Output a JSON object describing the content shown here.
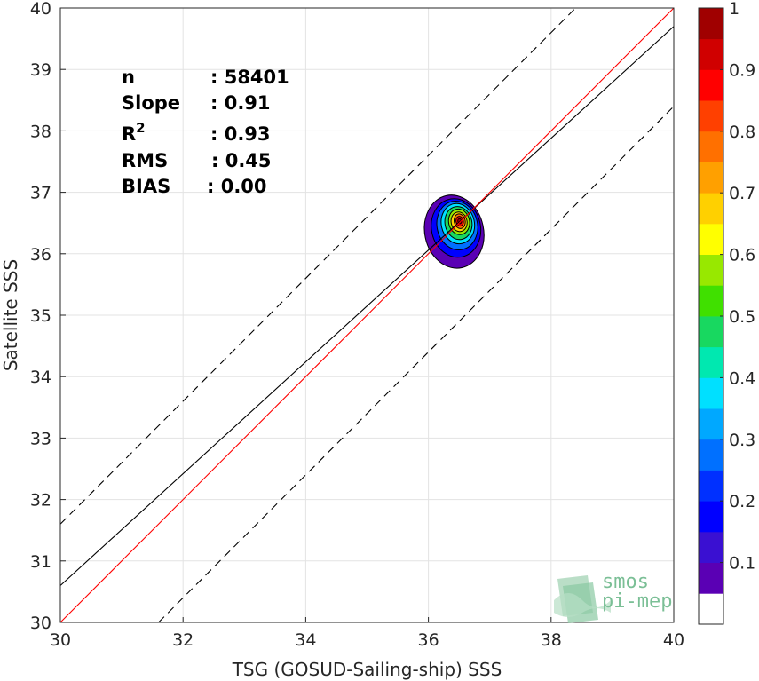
{
  "chart_data": {
    "type": "heatmap",
    "xlabel": "TSG (GOSUD-Sailing-ship) SSS",
    "ylabel": "Satellite SSS",
    "xlim": [
      30,
      40
    ],
    "ylim": [
      30,
      40
    ],
    "xticks": [
      "30",
      "32",
      "34",
      "36",
      "38",
      "40"
    ],
    "yticks": [
      "30",
      "31",
      "32",
      "33",
      "34",
      "35",
      "36",
      "37",
      "38",
      "39",
      "40"
    ],
    "grid": true,
    "stats": [
      {
        "label": "n",
        "value": ": 58401"
      },
      {
        "label": "Slope",
        "value": ": 0.91"
      },
      {
        "label": "R",
        "sup": "2",
        "value": ": 0.93"
      },
      {
        "label": "RMS",
        "value": ": 0.45"
      },
      {
        "label": "BIAS",
        "value": ": 0.00"
      }
    ],
    "lines": {
      "identity": {
        "color": "#ff0000",
        "slope": 1.0,
        "intercept": 0.0
      },
      "fit": {
        "color": "#000000",
        "slope": 0.91,
        "intercept": 3.3
      },
      "upper_dashed": {
        "slope": 1.0,
        "intercept": 1.6
      },
      "lower_dashed": {
        "slope": 1.0,
        "intercept": -1.6
      }
    },
    "density": {
      "center": [
        36.5,
        36.52
      ],
      "levels": [
        {
          "level": 0.05,
          "rx": 0.48,
          "ry": 0.6,
          "dx": -0.08,
          "dy": -0.16
        },
        {
          "level": 0.15,
          "rx": 0.4,
          "ry": 0.48,
          "dx": -0.05,
          "dy": -0.1
        },
        {
          "level": 0.25,
          "rx": 0.33,
          "ry": 0.4,
          "dx": -0.03,
          "dy": -0.06
        },
        {
          "level": 0.35,
          "rx": 0.27,
          "ry": 0.33,
          "dx": -0.02,
          "dy": -0.03
        },
        {
          "level": 0.45,
          "rx": 0.22,
          "ry": 0.27,
          "dx": -0.01,
          "dy": -0.02
        },
        {
          "level": 0.55,
          "rx": 0.17,
          "ry": 0.21,
          "dx": 0,
          "dy": 0
        },
        {
          "level": 0.65,
          "rx": 0.13,
          "ry": 0.16,
          "dx": 0,
          "dy": 0
        },
        {
          "level": 0.75,
          "rx": 0.09,
          "ry": 0.12,
          "dx": 0.01,
          "dy": 0.01
        },
        {
          "level": 0.85,
          "rx": 0.06,
          "ry": 0.08,
          "dx": 0.01,
          "dy": 0.01
        },
        {
          "level": 0.95,
          "rx": 0.03,
          "ry": 0.04,
          "dx": 0.01,
          "dy": 0.01
        }
      ]
    },
    "colorbar": {
      "range": [
        0,
        1
      ],
      "ticks": [
        "0.1",
        "0.2",
        "0.3",
        "0.4",
        "0.5",
        "0.6",
        "0.7",
        "0.8",
        "0.9",
        "1"
      ],
      "colors": [
        "#ffffff",
        "#5a00b4",
        "#3a10d2",
        "#0000ff",
        "#0030ff",
        "#0070ff",
        "#00a8ff",
        "#00e0ff",
        "#00e8b0",
        "#18d860",
        "#40e000",
        "#98e800",
        "#ffff00",
        "#ffd000",
        "#ffa000",
        "#ff7000",
        "#ff4000",
        "#ff0000",
        "#d00000",
        "#a00000"
      ]
    }
  },
  "logo": {
    "line1": "smos",
    "line2": "pi-mep"
  }
}
